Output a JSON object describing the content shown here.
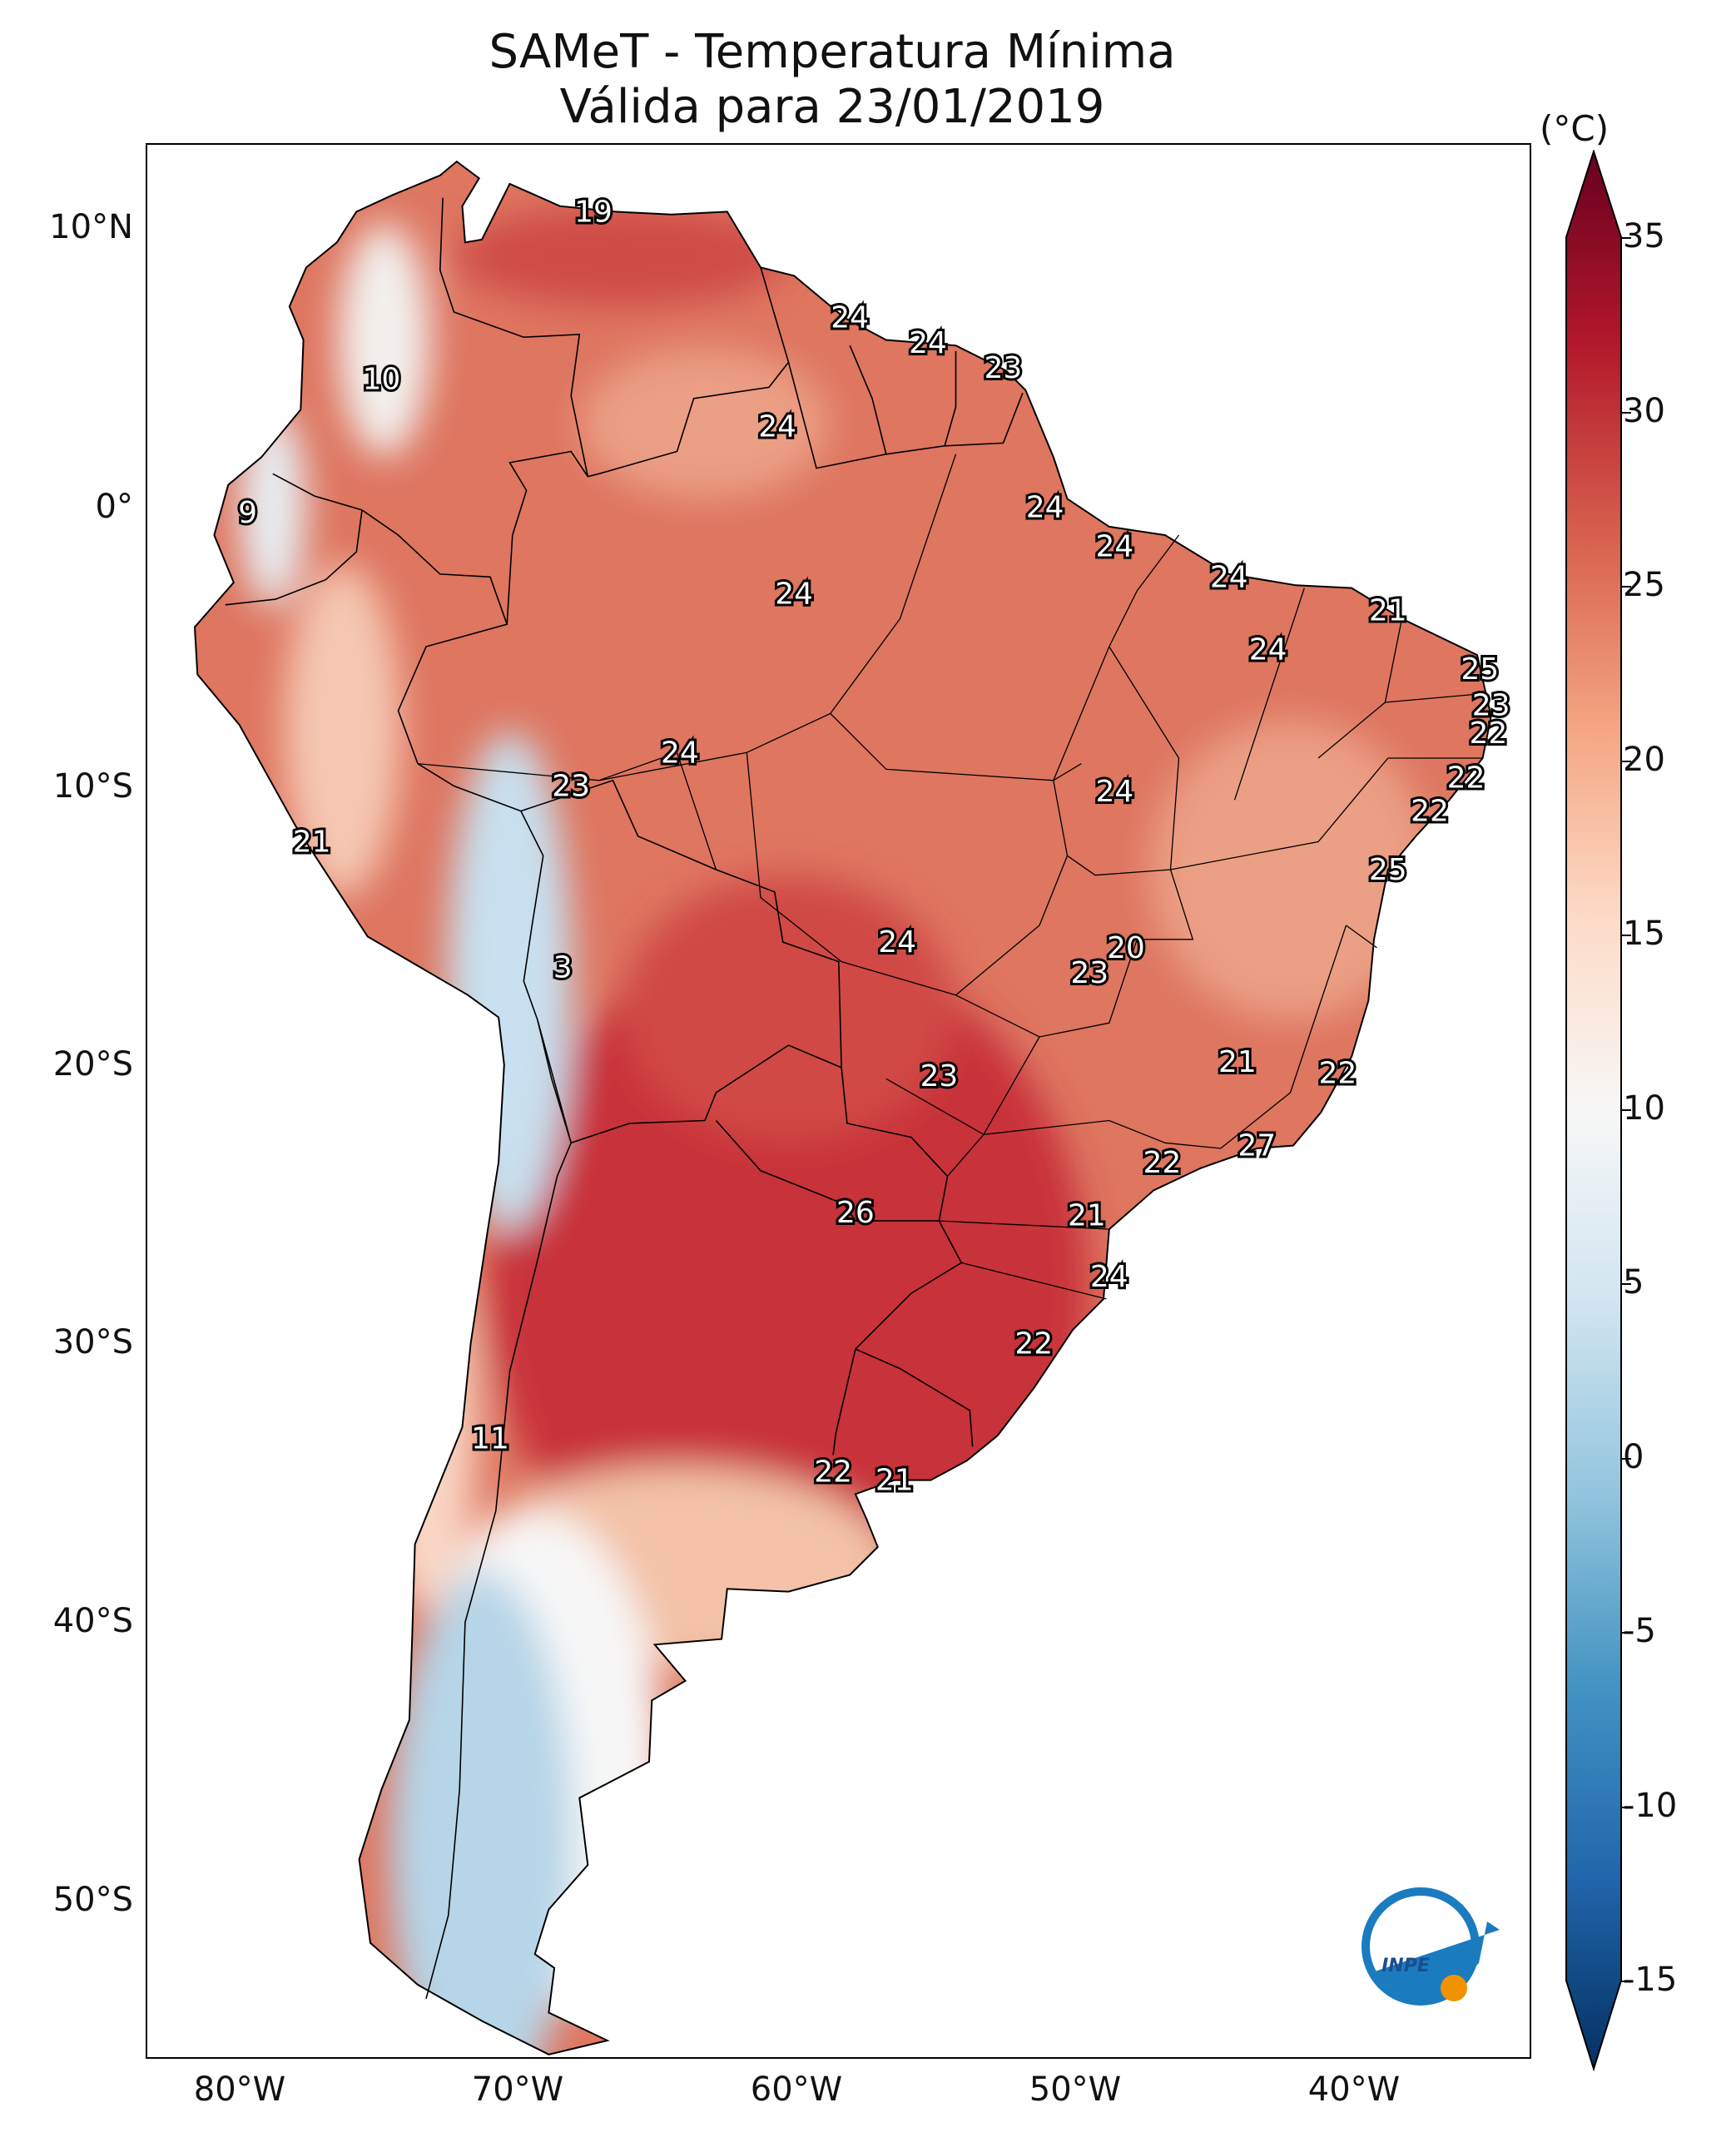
{
  "title": {
    "line1": "SAMeT - Temperatura Mínima",
    "line2": "Válida para 23/01/2019"
  },
  "map": {
    "latitude_labels": [
      "10°N",
      "0°",
      "10°S",
      "20°S",
      "30°S",
      "40°S",
      "50°S"
    ],
    "longitude_labels": [
      "80°W",
      "70°W",
      "60°W",
      "50°W",
      "40°W"
    ],
    "station_values": [
      {
        "label": "19",
        "lon": -67,
        "lat": 10.6
      },
      {
        "label": "24",
        "lon": -57.8,
        "lat": 6.8
      },
      {
        "label": "24",
        "lon": -55,
        "lat": 5.9
      },
      {
        "label": "23",
        "lon": -52.3,
        "lat": 5
      },
      {
        "label": "10",
        "lon": -74.6,
        "lat": 4.6
      },
      {
        "label": "24",
        "lon": -60.4,
        "lat": 2.9
      },
      {
        "label": "9",
        "lon": -79.4,
        "lat": -0.2
      },
      {
        "label": "24",
        "lon": -50.8,
        "lat": 0
      },
      {
        "label": "24",
        "lon": -48.3,
        "lat": -1.4
      },
      {
        "label": "24",
        "lon": -44.2,
        "lat": -2.5
      },
      {
        "label": "21",
        "lon": -38.5,
        "lat": -3.7
      },
      {
        "label": "24",
        "lon": -59.8,
        "lat": -3.1
      },
      {
        "label": "24",
        "lon": -42.8,
        "lat": -5.1
      },
      {
        "label": "25",
        "lon": -35.2,
        "lat": -5.8
      },
      {
        "label": "23",
        "lon": -34.8,
        "lat": -7.1
      },
      {
        "label": "22",
        "lon": -34.9,
        "lat": -8.1
      },
      {
        "label": "24",
        "lon": -63.9,
        "lat": -8.8
      },
      {
        "label": "23",
        "lon": -67.8,
        "lat": -10
      },
      {
        "label": "22",
        "lon": -35.7,
        "lat": -9.7
      },
      {
        "label": "24",
        "lon": -48.3,
        "lat": -10.2
      },
      {
        "label": "22",
        "lon": -37,
        "lat": -10.9
      },
      {
        "label": "21",
        "lon": -77.1,
        "lat": -12
      },
      {
        "label": "25",
        "lon": -38.5,
        "lat": -13
      },
      {
        "label": "24",
        "lon": -56.1,
        "lat": -15.6
      },
      {
        "label": "20",
        "lon": -47.9,
        "lat": -15.8
      },
      {
        "label": "23",
        "lon": -49.2,
        "lat": -16.7
      },
      {
        "label": "3",
        "lon": -68.1,
        "lat": -16.5
      },
      {
        "label": "21",
        "lon": -43.9,
        "lat": -19.9
      },
      {
        "label": "22",
        "lon": -40.3,
        "lat": -20.3
      },
      {
        "label": "23",
        "lon": -54.6,
        "lat": -20.4
      },
      {
        "label": "27",
        "lon": -43.2,
        "lat": -22.9
      },
      {
        "label": "22",
        "lon": -46.6,
        "lat": -23.5
      },
      {
        "label": "26",
        "lon": -57.6,
        "lat": -25.3
      },
      {
        "label": "21",
        "lon": -49.3,
        "lat": -25.4
      },
      {
        "label": "24",
        "lon": -48.5,
        "lat": -27.6
      },
      {
        "label": "22",
        "lon": -51.2,
        "lat": -30
      },
      {
        "label": "11",
        "lon": -70.7,
        "lat": -33.4
      },
      {
        "label": "22",
        "lon": -58.4,
        "lat": -34.6
      },
      {
        "label": "21",
        "lon": -56.2,
        "lat": -34.9
      }
    ]
  },
  "colorbar": {
    "unit": "(°C)",
    "ticks": [
      "35",
      "30",
      "25",
      "20",
      "15",
      "10",
      "5",
      "0",
      "-5",
      "-10",
      "-15"
    ],
    "range": [
      -15,
      35
    ],
    "colors": [
      "#053061",
      "#2166ac",
      "#4393c3",
      "#92c5de",
      "#d1e5f0",
      "#f7f7f7",
      "#fddbc7",
      "#f4a582",
      "#d6604d",
      "#b2182b",
      "#67001f"
    ]
  },
  "logo": {
    "text": "INPE"
  }
}
